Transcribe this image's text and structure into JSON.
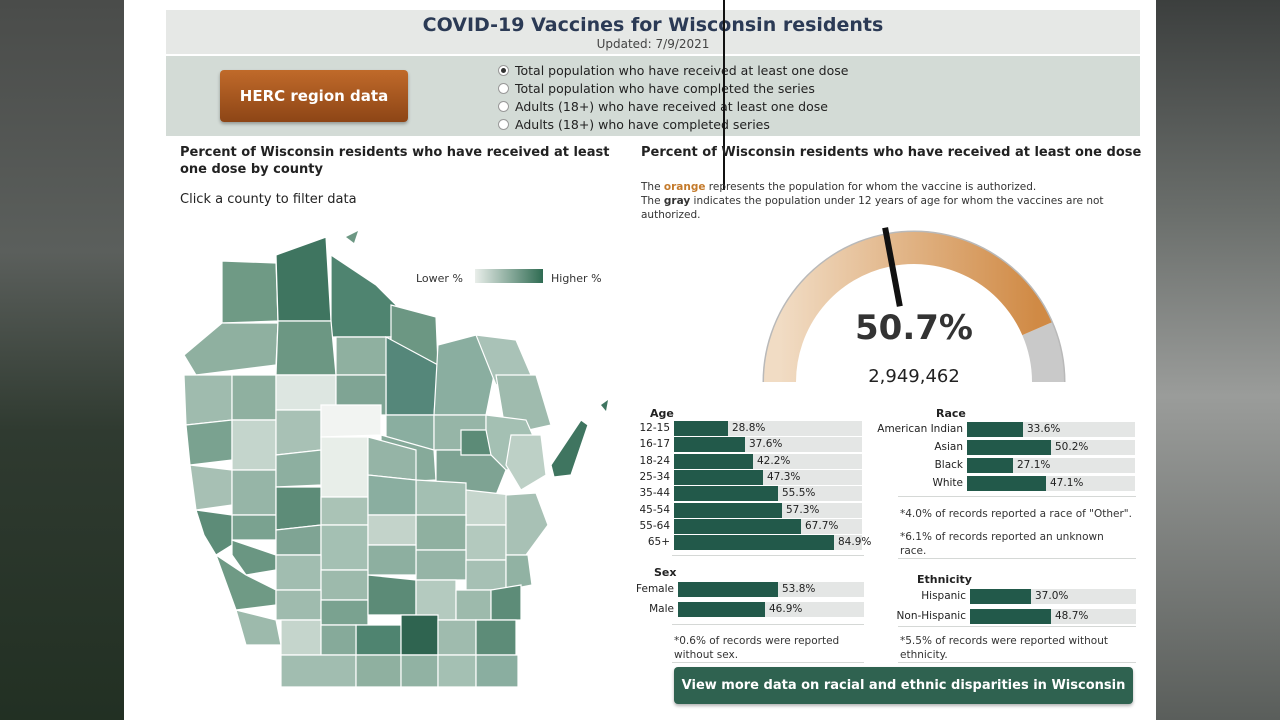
{
  "header": {
    "title": "COVID-19 Vaccines for Wisconsin residents",
    "updated": "Updated: 7/9/2021"
  },
  "controls": {
    "herc_button": "HERC region data",
    "radios": [
      {
        "label": "Total population who have received at least one dose",
        "selected": true
      },
      {
        "label": "Total population who have completed the series",
        "selected": false
      },
      {
        "label": "Adults (18+) who have received at least one dose",
        "selected": false
      },
      {
        "label": "Adults (18+) who have completed series",
        "selected": false
      }
    ]
  },
  "map_section": {
    "title_line1": "Percent of Wisconsin residents who have received at least",
    "title_line2": "one dose by county",
    "hint": "Click a county to filter data",
    "legend_lower": "Lower %",
    "legend_higher": "Higher %"
  },
  "right_section": {
    "title": "Percent of Wisconsin residents who have received at least one dose",
    "note_orange_pre": "The ",
    "note_orange_word": "orange",
    "note_orange_post": " represents the population for whom the vaccine is authorized.",
    "note_gray_pre": "The ",
    "note_gray_word": "gray",
    "note_gray_post": " indicates the population under 12 years of age for whom the vaccines are not",
    "note_gray_post2": "authorized.",
    "gauge_percent": "50.7%",
    "gauge_value": 50.7,
    "gauge_count": "2,949,462"
  },
  "age": {
    "title": "Age",
    "rows": [
      {
        "label": "12-15",
        "value": "28.8%",
        "pct": 28.8
      },
      {
        "label": "16-17",
        "value": "37.6%",
        "pct": 37.6
      },
      {
        "label": "18-24",
        "value": "42.2%",
        "pct": 42.2
      },
      {
        "label": "25-34",
        "value": "47.3%",
        "pct": 47.3
      },
      {
        "label": "35-44",
        "value": "55.5%",
        "pct": 55.5
      },
      {
        "label": "45-54",
        "value": "57.3%",
        "pct": 57.3
      },
      {
        "label": "55-64",
        "value": "67.7%",
        "pct": 67.7
      },
      {
        "label": "65+",
        "value": "84.9%",
        "pct": 84.9
      }
    ]
  },
  "race": {
    "title": "Race",
    "rows": [
      {
        "label": "American Indian",
        "value": "33.6%",
        "pct": 33.6
      },
      {
        "label": "Asian",
        "value": "50.2%",
        "pct": 50.2
      },
      {
        "label": "Black",
        "value": "27.1%",
        "pct": 27.1
      },
      {
        "label": "White",
        "value": "47.1%",
        "pct": 47.1
      }
    ],
    "note1": "*4.0% of records reported a race of \"Other\".",
    "note2_line1": "*6.1% of records reported an unknown",
    "note2_line2": "race."
  },
  "sex": {
    "title": "Sex",
    "rows": [
      {
        "label": "Female",
        "value": "53.8%",
        "pct": 53.8
      },
      {
        "label": "Male",
        "value": "46.9%",
        "pct": 46.9
      }
    ],
    "note_line1": "*0.6% of records were reported",
    "note_line2": "without sex."
  },
  "ethnicity": {
    "title": "Ethnicity",
    "rows": [
      {
        "label": "Hispanic",
        "value": "37.0%",
        "pct": 37.0
      },
      {
        "label": "Non-Hispanic",
        "value": "48.7%",
        "pct": 48.7
      }
    ],
    "note_line1": "*5.5% of records were reported without",
    "note_line2": "ethnicity."
  },
  "bottom_button": "View more data on racial and ethnic disparities in Wisconsin",
  "colors": {
    "orange": "#d9a068",
    "gray": "#c9c9c9",
    "bar": "#22594a",
    "button_green": "#2f6250",
    "herc": "#a5561f"
  }
}
